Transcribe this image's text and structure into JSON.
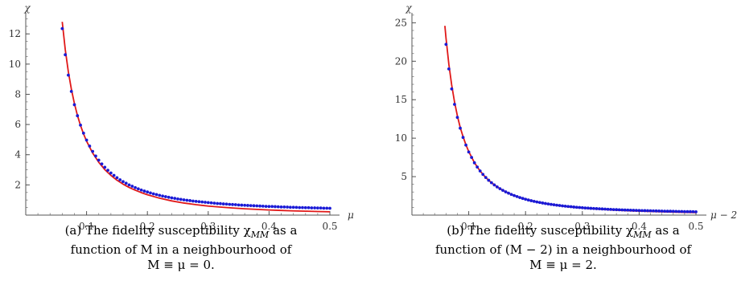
{
  "chart_data": [
    {
      "type": "scatter",
      "xlabel": "μ",
      "ylabel": "χ",
      "xlim": [
        0,
        0.55
      ],
      "ylim": [
        0,
        13.5
      ],
      "x_ticks": [
        0.1,
        0.2,
        0.3,
        0.4,
        0.5
      ],
      "x_tick_labels": [
        "0.1",
        "0.2",
        "0.3",
        "0.4",
        "0.5"
      ],
      "y_ticks": [
        2,
        4,
        6,
        8,
        10,
        12
      ],
      "y_tick_labels": [
        "2",
        "4",
        "6",
        "8",
        "10",
        "12"
      ],
      "x_minor_step": 0.02,
      "y_minor_step": 0.5,
      "colors": {
        "points": "#1a1ad6",
        "fit": "#e01818"
      },
      "series": [
        {
          "kind": "points",
          "x": [
            0.06,
            0.065,
            0.07,
            0.075,
            0.08,
            0.085,
            0.09,
            0.095,
            0.1,
            0.105,
            0.11,
            0.115,
            0.12,
            0.125,
            0.13,
            0.135,
            0.14,
            0.145,
            0.15,
            0.155,
            0.16,
            0.165,
            0.17,
            0.175,
            0.18,
            0.185,
            0.19,
            0.195,
            0.2,
            0.205,
            0.21,
            0.215,
            0.22,
            0.225,
            0.23,
            0.235,
            0.24,
            0.245,
            0.25,
            0.255,
            0.26,
            0.265,
            0.27,
            0.275,
            0.28,
            0.285,
            0.29,
            0.295,
            0.3,
            0.305,
            0.31,
            0.315,
            0.32,
            0.325,
            0.33,
            0.335,
            0.34,
            0.345,
            0.35,
            0.355,
            0.36,
            0.365,
            0.37,
            0.375,
            0.38,
            0.385,
            0.39,
            0.395,
            0.4,
            0.405,
            0.41,
            0.415,
            0.42,
            0.425,
            0.43,
            0.435,
            0.44,
            0.445,
            0.45,
            0.455,
            0.46,
            0.465,
            0.47,
            0.475,
            0.48,
            0.485,
            0.49,
            0.495,
            0.5
          ],
          "y": [
            12.35,
            10.62,
            9.27,
            8.19,
            7.31,
            6.58,
            5.96,
            5.43,
            4.97,
            4.57,
            4.22,
            3.91,
            3.64,
            3.39,
            3.17,
            2.97,
            2.79,
            2.63,
            2.48,
            2.34,
            2.22,
            2.11,
            2.0,
            1.91,
            1.82,
            1.74,
            1.66,
            1.59,
            1.53,
            1.47,
            1.41,
            1.36,
            1.31,
            1.26,
            1.22,
            1.18,
            1.14,
            1.11,
            1.07,
            1.04,
            1.01,
            0.98,
            0.96,
            0.93,
            0.91,
            0.89,
            0.87,
            0.85,
            0.83,
            0.81,
            0.79,
            0.77,
            0.76,
            0.74,
            0.73,
            0.71,
            0.7,
            0.69,
            0.67,
            0.66,
            0.65,
            0.64,
            0.63,
            0.62,
            0.61,
            0.6,
            0.59,
            0.58,
            0.57,
            0.57,
            0.56,
            0.55,
            0.54,
            0.54,
            0.53,
            0.52,
            0.52,
            0.51,
            0.5,
            0.5,
            0.49,
            0.49,
            0.48,
            0.48,
            0.47,
            0.47,
            0.46,
            0.46,
            0.45
          ]
        },
        {
          "kind": "curve",
          "x": [
            0.06,
            0.065,
            0.07,
            0.075,
            0.08,
            0.085,
            0.09,
            0.095,
            0.1,
            0.11,
            0.12,
            0.13,
            0.14,
            0.15,
            0.16,
            0.17,
            0.18,
            0.19,
            0.2,
            0.22,
            0.24,
            0.26,
            0.28,
            0.3,
            0.32,
            0.34,
            0.36,
            0.38,
            0.4,
            0.42,
            0.44,
            0.46,
            0.48,
            0.5
          ],
          "y": [
            12.8,
            10.95,
            9.5,
            8.34,
            7.39,
            6.6,
            5.94,
            5.38,
            4.9,
            4.11,
            3.5,
            3.01,
            2.63,
            2.31,
            2.05,
            1.83,
            1.65,
            1.49,
            1.35,
            1.12,
            0.94,
            0.8,
            0.69,
            0.6,
            0.53,
            0.47,
            0.42,
            0.38,
            0.34,
            0.31,
            0.28,
            0.26,
            0.24,
            0.22
          ]
        }
      ]
    },
    {
      "type": "scatter",
      "xlabel": "μ − 2",
      "ylabel": "χ",
      "xlim": [
        0,
        0.55
      ],
      "ylim": [
        0,
        26.5
      ],
      "x_ticks": [
        0.1,
        0.2,
        0.3,
        0.4,
        0.5
      ],
      "x_tick_labels": [
        "0.1",
        "0.2",
        "0.3",
        "0.4",
        "0.5"
      ],
      "y_ticks": [
        5,
        10,
        15,
        20,
        25
      ],
      "y_tick_labels": [
        "5",
        "10",
        "15",
        "20",
        "25"
      ],
      "x_minor_step": 0.02,
      "y_minor_step": 1,
      "colors": {
        "points": "#1a1ad6",
        "fit": "#e01818"
      },
      "series": [
        {
          "kind": "points",
          "x": [
            0.06,
            0.065,
            0.07,
            0.075,
            0.08,
            0.085,
            0.09,
            0.095,
            0.1,
            0.105,
            0.11,
            0.115,
            0.12,
            0.125,
            0.13,
            0.135,
            0.14,
            0.145,
            0.15,
            0.155,
            0.16,
            0.165,
            0.17,
            0.175,
            0.18,
            0.185,
            0.19,
            0.195,
            0.2,
            0.205,
            0.21,
            0.215,
            0.22,
            0.225,
            0.23,
            0.235,
            0.24,
            0.245,
            0.25,
            0.255,
            0.26,
            0.265,
            0.27,
            0.275,
            0.28,
            0.285,
            0.29,
            0.295,
            0.3,
            0.305,
            0.31,
            0.315,
            0.32,
            0.325,
            0.33,
            0.335,
            0.34,
            0.345,
            0.35,
            0.355,
            0.36,
            0.365,
            0.37,
            0.375,
            0.38,
            0.385,
            0.39,
            0.395,
            0.4,
            0.405,
            0.41,
            0.415,
            0.42,
            0.425,
            0.43,
            0.435,
            0.44,
            0.445,
            0.45,
            0.455,
            0.46,
            0.465,
            0.47,
            0.475,
            0.48,
            0.485,
            0.49,
            0.495,
            0.5
          ],
          "y": [
            22.2,
            19.0,
            16.4,
            14.4,
            12.7,
            11.3,
            10.1,
            9.1,
            8.2,
            7.5,
            6.8,
            6.25,
            5.74,
            5.29,
            4.89,
            4.53,
            4.21,
            3.92,
            3.66,
            3.43,
            3.22,
            3.02,
            2.85,
            2.69,
            2.54,
            2.41,
            2.28,
            2.17,
            2.06,
            1.96,
            1.87,
            1.79,
            1.71,
            1.64,
            1.57,
            1.51,
            1.45,
            1.39,
            1.34,
            1.29,
            1.25,
            1.2,
            1.16,
            1.12,
            1.09,
            1.05,
            1.02,
            0.99,
            0.96,
            0.93,
            0.91,
            0.88,
            0.86,
            0.84,
            0.82,
            0.8,
            0.78,
            0.76,
            0.74,
            0.72,
            0.71,
            0.69,
            0.68,
            0.66,
            0.65,
            0.64,
            0.62,
            0.61,
            0.6,
            0.59,
            0.58,
            0.57,
            0.56,
            0.55,
            0.54,
            0.53,
            0.52,
            0.51,
            0.5,
            0.5,
            0.49,
            0.48,
            0.47,
            0.47,
            0.46,
            0.45,
            0.45,
            0.44,
            0.43
          ]
        },
        {
          "kind": "curve",
          "x": [
            0.058,
            0.06,
            0.065,
            0.07,
            0.075,
            0.08,
            0.085,
            0.09,
            0.095,
            0.1,
            0.11,
            0.12,
            0.13,
            0.14,
            0.15,
            0.16,
            0.17,
            0.18,
            0.19,
            0.2,
            0.22,
            0.24,
            0.26,
            0.28,
            0.3,
            0.32,
            0.34,
            0.36,
            0.38,
            0.4,
            0.42,
            0.44,
            0.46,
            0.48,
            0.5
          ],
          "y": [
            24.6,
            23.0,
            19.6,
            16.9,
            14.7,
            12.9,
            11.4,
            10.2,
            9.15,
            8.26,
            6.82,
            5.73,
            4.88,
            4.21,
            3.67,
            3.22,
            2.86,
            2.55,
            2.29,
            2.07,
            1.71,
            1.43,
            1.22,
            1.05,
            0.92,
            0.81,
            0.72,
            0.64,
            0.57,
            0.52,
            0.47,
            0.43,
            0.39,
            0.36,
            0.33
          ]
        }
      ]
    }
  ],
  "captions": {
    "a": {
      "line1": "(a) The fidelity susceptibility χ",
      "sub": "MM",
      "line1_end": " as a",
      "line2": "function of M in a neighbourhood of",
      "line3": "M ≡ μ = 0."
    },
    "b": {
      "line1": "(b) The fidelity susceptibility χ",
      "sub": "MM",
      "line1_end": " as a",
      "line2": "function of (M − 2) in a neighbourhood of",
      "line3": "M ≡ μ = 2."
    }
  }
}
